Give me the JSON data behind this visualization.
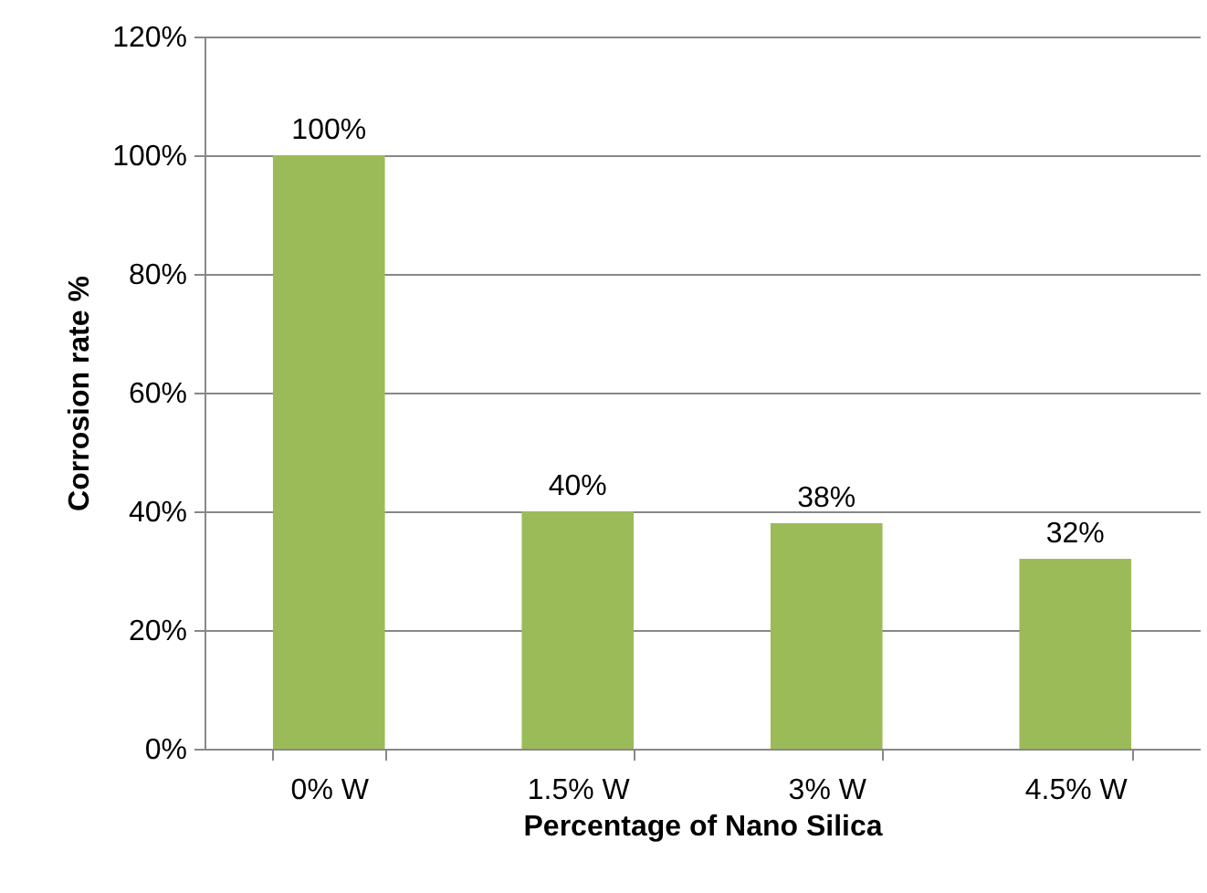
{
  "chart_data": {
    "type": "bar",
    "xlabel": "Percentage of Nano Silica",
    "ylabel": "Corrosion rate %",
    "categories": [
      "0% W",
      "1.5% W",
      "3% W",
      "4.5% W"
    ],
    "values": [
      100,
      40,
      38,
      32
    ],
    "value_labels": [
      "100%",
      "40%",
      "38%",
      "32%"
    ],
    "color": "#9bbb59",
    "ylim": [
      0,
      120
    ],
    "yticks": [
      {
        "value": 0,
        "label": "0%"
      },
      {
        "value": 20,
        "label": "20%"
      },
      {
        "value": 40,
        "label": "40%"
      },
      {
        "value": 60,
        "label": "60%"
      },
      {
        "value": 80,
        "label": "80%"
      },
      {
        "value": 100,
        "label": "100%"
      },
      {
        "value": 120,
        "label": "120%"
      }
    ],
    "grid": "y"
  }
}
